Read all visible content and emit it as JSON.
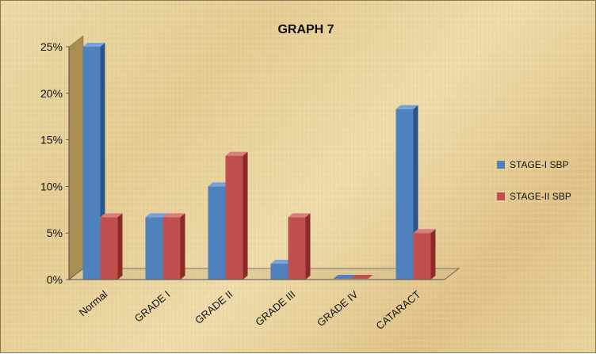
{
  "chart_data": {
    "type": "bar",
    "title": "GRAPH 7",
    "categories": [
      "Normal",
      "GRADE I",
      "GRADE II",
      "GRADE III",
      "GRADE IV",
      "CATARACT"
    ],
    "series": [
      {
        "name": "STAGE-I SBP",
        "values": [
          25,
          6.7,
          10,
          1.7,
          0,
          18.3
        ]
      },
      {
        "name": "STAGE-II SBP",
        "values": [
          6.7,
          6.7,
          13.3,
          6.7,
          0,
          5
        ]
      }
    ],
    "ylim": [
      0,
      25
    ],
    "yticks": [
      "0%",
      "5%",
      "10%",
      "15%",
      "20%",
      "25%"
    ],
    "legend_position": "right",
    "grid": false,
    "colors": {
      "series1_front": "#4f81bd",
      "series1_side": "#2c5389",
      "series1_top": "#7aa2d6",
      "series2_front": "#c0504d",
      "series2_side": "#8b2a27",
      "series2_top": "#d8807d"
    }
  }
}
